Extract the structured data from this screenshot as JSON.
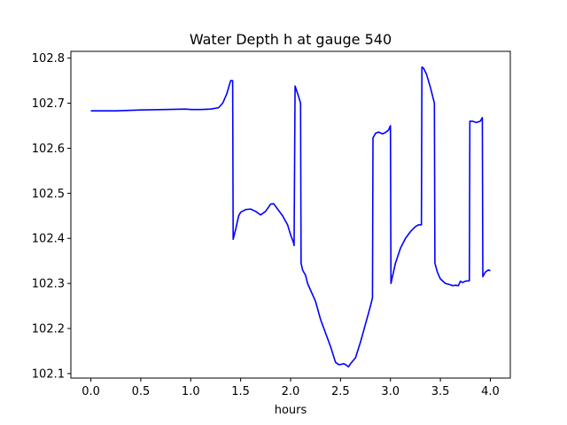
{
  "chart_data": {
    "type": "line",
    "title": "Water Depth h at gauge 540",
    "xlabel": "hours",
    "ylabel": "",
    "xlim": [
      -0.2,
      4.2
    ],
    "ylim": [
      102.09,
      102.815
    ],
    "xticks": [
      0.0,
      0.5,
      1.0,
      1.5,
      2.0,
      2.5,
      3.0,
      3.5,
      4.0
    ],
    "xtick_labels": [
      "0.0",
      "0.5",
      "1.0",
      "1.5",
      "2.0",
      "2.5",
      "3.0",
      "3.5",
      "4.0"
    ],
    "yticks": [
      102.1,
      102.2,
      102.3,
      102.4,
      102.5,
      102.6,
      102.7,
      102.8
    ],
    "ytick_labels": [
      "102.1",
      "102.2",
      "102.3",
      "102.4",
      "102.5",
      "102.6",
      "102.7",
      "102.8"
    ],
    "grid": false,
    "line_color": "#0000ff",
    "series": [
      {
        "x": [
          0.0,
          0.25,
          0.5,
          0.75,
          0.95,
          1.0,
          1.1,
          1.2,
          1.28,
          1.32,
          1.36,
          1.4,
          1.42,
          1.425,
          1.45,
          1.48,
          1.5,
          1.55,
          1.6,
          1.65,
          1.7,
          1.75,
          1.8,
          1.83,
          1.87,
          1.92,
          1.97,
          2.0,
          2.03,
          2.035,
          2.045,
          2.08,
          2.1,
          2.105,
          2.12,
          2.15,
          2.17,
          2.2,
          2.25,
          2.3,
          2.35,
          2.4,
          2.45,
          2.48,
          2.5,
          2.53,
          2.55,
          2.58,
          2.6,
          2.65,
          2.7,
          2.75,
          2.8,
          2.82,
          2.825,
          2.85,
          2.88,
          2.92,
          2.95,
          2.98,
          3.0,
          3.005,
          3.05,
          3.1,
          3.15,
          3.2,
          3.25,
          3.28,
          3.31,
          3.315,
          3.33,
          3.36,
          3.4,
          3.44,
          3.445,
          3.47,
          3.5,
          3.55,
          3.6,
          3.62,
          3.65,
          3.68,
          3.7,
          3.72,
          3.75,
          3.79,
          3.795,
          3.82,
          3.86,
          3.9,
          3.92,
          3.925,
          3.95,
          3.98,
          4.0
        ],
        "y": [
          102.683,
          102.683,
          102.685,
          102.686,
          102.687,
          102.686,
          102.686,
          102.687,
          102.69,
          102.7,
          102.72,
          102.75,
          102.75,
          102.398,
          102.42,
          102.45,
          102.458,
          102.464,
          102.465,
          102.46,
          102.452,
          102.46,
          102.476,
          102.477,
          102.465,
          102.45,
          102.43,
          102.408,
          102.39,
          102.384,
          102.738,
          102.715,
          102.7,
          102.345,
          102.33,
          102.318,
          102.3,
          102.285,
          102.26,
          102.22,
          102.19,
          102.16,
          102.125,
          102.12,
          102.12,
          102.122,
          102.12,
          102.115,
          102.122,
          102.135,
          102.17,
          102.21,
          102.25,
          102.268,
          102.623,
          102.633,
          102.636,
          102.632,
          102.635,
          102.64,
          102.65,
          102.3,
          102.345,
          102.378,
          102.4,
          102.415,
          102.426,
          102.43,
          102.43,
          102.78,
          102.778,
          102.765,
          102.735,
          102.7,
          102.345,
          102.325,
          102.31,
          102.3,
          102.297,
          102.295,
          102.296,
          102.295,
          102.305,
          102.302,
          102.305,
          102.306,
          102.66,
          102.66,
          102.657,
          102.66,
          102.668,
          102.315,
          102.325,
          102.33,
          102.328
        ]
      }
    ]
  }
}
